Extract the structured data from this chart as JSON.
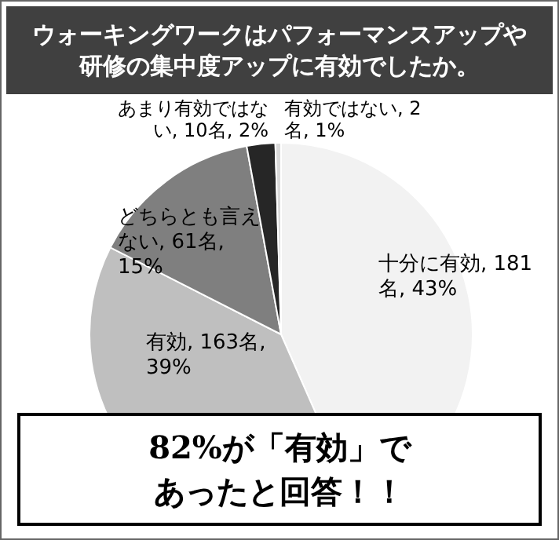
{
  "chart_data": {
    "type": "pie",
    "title": "ウォーキングワークはパフォーマンスアップや研修の集中度アップに有効でしたか。",
    "categories": [
      "十分に有効",
      "有効",
      "どちらとも言えない",
      "あまり有効ではない",
      "有効ではない"
    ],
    "values": [
      181,
      163,
      61,
      10,
      2
    ],
    "value_labels": [
      "181名, 43%",
      "163名, 39%",
      "61名, 15%",
      "10名, 2%",
      "2名, 1%"
    ],
    "colors": [
      "#f2f2f2",
      "#bfbfbf",
      "#7f7f7f",
      "#262626",
      "#d9d9d9"
    ],
    "annotations": [
      "82%が「有効」であったと回答！！"
    ]
  }
}
